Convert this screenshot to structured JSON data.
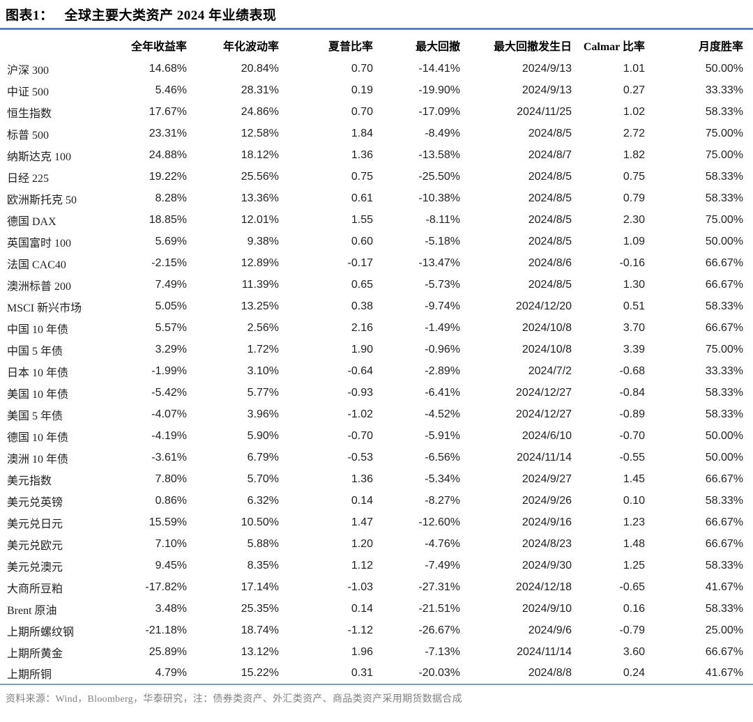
{
  "header": {
    "figure_label": "图表1：",
    "title": "全球主要大类资产 2024 年业绩表现"
  },
  "colors": {
    "title_rule_blue": "#6b8cba",
    "table_bottom_border_blue": "#7b9ac4",
    "source_note_gray": "#808080",
    "text_black": "#1a1a1a"
  },
  "footer": {
    "source_note": "资料来源：Wind，Bloomberg，华泰研究，注：债券类资产、外汇类资产、商品类资产采用期货数据合成"
  },
  "chart_data": {
    "type": "table",
    "title": "图表1： 全球主要大类资产 2024 年业绩表现",
    "columns": [
      "",
      "全年收益率",
      "年化波动率",
      "夏普比率",
      "最大回撤",
      "最大回撤发生日",
      "Calmar 比率",
      "月度胜率"
    ],
    "rows": [
      [
        "沪深 300",
        "14.68%",
        "20.84%",
        "0.70",
        "-14.41%",
        "2024/9/13",
        "1.01",
        "50.00%"
      ],
      [
        "中证 500",
        "5.46%",
        "28.31%",
        "0.19",
        "-19.90%",
        "2024/9/13",
        "0.27",
        "33.33%"
      ],
      [
        "恒生指数",
        "17.67%",
        "24.86%",
        "0.70",
        "-17.09%",
        "2024/11/25",
        "1.02",
        "58.33%"
      ],
      [
        "标普 500",
        "23.31%",
        "12.58%",
        "1.84",
        "-8.49%",
        "2024/8/5",
        "2.72",
        "75.00%"
      ],
      [
        "纳斯达克 100",
        "24.88%",
        "18.12%",
        "1.36",
        "-13.58%",
        "2024/8/7",
        "1.82",
        "75.00%"
      ],
      [
        "日经 225",
        "19.22%",
        "25.56%",
        "0.75",
        "-25.50%",
        "2024/8/5",
        "0.75",
        "58.33%"
      ],
      [
        "欧洲斯托克 50",
        "8.28%",
        "13.36%",
        "0.61",
        "-10.38%",
        "2024/8/5",
        "0.79",
        "58.33%"
      ],
      [
        "德国 DAX",
        "18.85%",
        "12.01%",
        "1.55",
        "-8.11%",
        "2024/8/5",
        "2.30",
        "75.00%"
      ],
      [
        "英国富时 100",
        "5.69%",
        "9.38%",
        "0.60",
        "-5.18%",
        "2024/8/5",
        "1.09",
        "50.00%"
      ],
      [
        "法国 CAC40",
        "-2.15%",
        "12.89%",
        "-0.17",
        "-13.47%",
        "2024/8/6",
        "-0.16",
        "66.67%"
      ],
      [
        "澳洲标普 200",
        "7.49%",
        "11.39%",
        "0.65",
        "-5.73%",
        "2024/8/5",
        "1.30",
        "66.67%"
      ],
      [
        "MSCI 新兴市场",
        "5.05%",
        "13.25%",
        "0.38",
        "-9.74%",
        "2024/12/20",
        "0.51",
        "58.33%"
      ],
      [
        "中国 10 年债",
        "5.57%",
        "2.56%",
        "2.16",
        "-1.49%",
        "2024/10/8",
        "3.70",
        "66.67%"
      ],
      [
        "中国 5 年债",
        "3.29%",
        "1.72%",
        "1.90",
        "-0.96%",
        "2024/10/8",
        "3.39",
        "75.00%"
      ],
      [
        "日本 10 年债",
        "-1.99%",
        "3.10%",
        "-0.64",
        "-2.89%",
        "2024/7/2",
        "-0.68",
        "33.33%"
      ],
      [
        "美国 10 年债",
        "-5.42%",
        "5.77%",
        "-0.93",
        "-6.41%",
        "2024/12/27",
        "-0.84",
        "58.33%"
      ],
      [
        "美国 5 年债",
        "-4.07%",
        "3.96%",
        "-1.02",
        "-4.52%",
        "2024/12/27",
        "-0.89",
        "58.33%"
      ],
      [
        "德国 10 年债",
        "-4.19%",
        "5.90%",
        "-0.70",
        "-5.91%",
        "2024/6/10",
        "-0.70",
        "50.00%"
      ],
      [
        "澳洲 10 年债",
        "-3.61%",
        "6.79%",
        "-0.53",
        "-6.56%",
        "2024/11/14",
        "-0.55",
        "50.00%"
      ],
      [
        "美元指数",
        "7.80%",
        "5.70%",
        "1.36",
        "-5.34%",
        "2024/9/27",
        "1.45",
        "66.67%"
      ],
      [
        "美元兑英镑",
        "0.86%",
        "6.32%",
        "0.14",
        "-8.27%",
        "2024/9/26",
        "0.10",
        "58.33%"
      ],
      [
        "美元兑日元",
        "15.59%",
        "10.50%",
        "1.47",
        "-12.60%",
        "2024/9/16",
        "1.23",
        "66.67%"
      ],
      [
        "美元兑欧元",
        "7.10%",
        "5.88%",
        "1.20",
        "-4.76%",
        "2024/8/23",
        "1.48",
        "66.67%"
      ],
      [
        "美元兑澳元",
        "9.45%",
        "8.35%",
        "1.12",
        "-7.49%",
        "2024/9/30",
        "1.25",
        "58.33%"
      ],
      [
        "大商所豆粕",
        "-17.82%",
        "17.14%",
        "-1.03",
        "-27.31%",
        "2024/12/18",
        "-0.65",
        "41.67%"
      ],
      [
        "Brent 原油",
        "3.48%",
        "25.35%",
        "0.14",
        "-21.51%",
        "2024/9/10",
        "0.16",
        "58.33%"
      ],
      [
        "上期所螺纹钢",
        "-21.18%",
        "18.74%",
        "-1.12",
        "-26.67%",
        "2024/9/6",
        "-0.79",
        "25.00%"
      ],
      [
        "上期所黄金",
        "25.89%",
        "13.12%",
        "1.96",
        "-7.13%",
        "2024/11/14",
        "3.60",
        "66.67%"
      ],
      [
        "上期所铜",
        "4.79%",
        "15.22%",
        "0.31",
        "-20.03%",
        "2024/8/8",
        "0.24",
        "41.67%"
      ]
    ]
  }
}
